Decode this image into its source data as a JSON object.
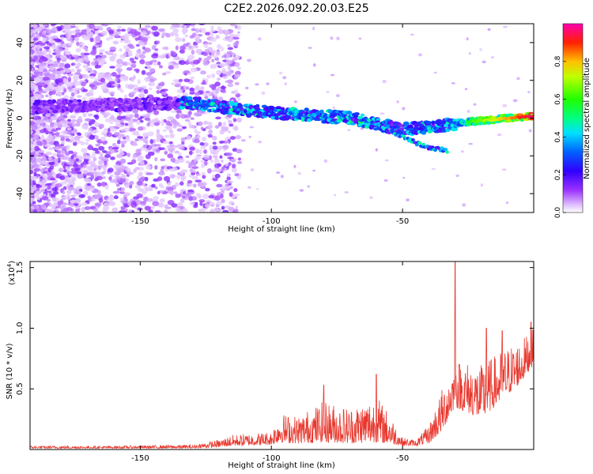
{
  "title": "C2E2.2026.092.20.03.E25",
  "chart_data": [
    {
      "type": "heatmap",
      "title": "C2E2.2026.092.20.03.E25",
      "xlabel": "Height of straight line (km)",
      "ylabel": "Frequency (Hz)",
      "xlim": [
        -192,
        0
      ],
      "ylim": [
        -50,
        50
      ],
      "xticks": [
        -150,
        -100,
        -50
      ],
      "yticks": [
        -40,
        -20,
        0,
        20,
        40
      ],
      "grid": false,
      "colorbar": {
        "label": "Normalized spectral amplitude",
        "range": [
          0,
          1
        ],
        "ticks": [
          "0.0",
          "0.2",
          "0.4",
          "0.6",
          "0.8"
        ],
        "colors": [
          "#ffffff",
          "#cc88ff",
          "#8000ff",
          "#0000ff",
          "#00ffff",
          "#00ff00",
          "#ffff00",
          "#ff8000",
          "#ff0000",
          "#ff00ff"
        ]
      },
      "ridge": {
        "description": "dominant spectral ridge",
        "points": [
          {
            "x": -188,
            "freq": 6
          },
          {
            "x": -130,
            "freq": 8
          },
          {
            "x": -110,
            "freq": 4
          },
          {
            "x": -90,
            "freq": 2
          },
          {
            "x": -70,
            "freq": 0
          },
          {
            "x": -50,
            "freq": -6
          },
          {
            "x": -35,
            "freq": -4
          },
          {
            "x": -25,
            "freq": -2
          },
          {
            "x": -10,
            "freq": 0
          },
          {
            "x": 0,
            "freq": 1
          }
        ],
        "branch": [
          {
            "x": -60,
            "freq": -4
          },
          {
            "x": -50,
            "freq": -10
          },
          {
            "x": -40,
            "freq": -16
          },
          {
            "x": -33,
            "freq": -17
          }
        ]
      }
    },
    {
      "type": "line",
      "xlabel": "Height of straight line (km)",
      "ylabel": "SNR (10 * v/v)",
      "yscale_label": "(x10",
      "yscale_exponent": "4",
      "xlim": [
        -192,
        0
      ],
      "ylim": [
        0,
        1.55
      ],
      "xticks": [
        -150,
        -100,
        -50
      ],
      "yticks": [
        0.5,
        1.0,
        1.5
      ],
      "ytick_labels": [
        "0.5",
        "1.0",
        "1.5"
      ],
      "color": "#e8392f",
      "grid": false,
      "envelope": [
        {
          "x": -192,
          "lo": 0.01,
          "hi": 0.03
        },
        {
          "x": -160,
          "lo": 0.01,
          "hi": 0.03
        },
        {
          "x": -130,
          "lo": 0.01,
          "hi": 0.04
        },
        {
          "x": -120,
          "lo": 0.02,
          "hi": 0.08
        },
        {
          "x": -115,
          "lo": 0.03,
          "hi": 0.12
        },
        {
          "x": -100,
          "lo": 0.04,
          "hi": 0.15
        },
        {
          "x": -97,
          "lo": 0.06,
          "hi": 0.3
        },
        {
          "x": -90,
          "lo": 0.05,
          "hi": 0.28
        },
        {
          "x": -80,
          "lo": 0.06,
          "hi": 0.4
        },
        {
          "x": -70,
          "lo": 0.05,
          "hi": 0.35
        },
        {
          "x": -60,
          "lo": 0.06,
          "hi": 0.45
        },
        {
          "x": -55,
          "lo": 0.05,
          "hi": 0.3
        },
        {
          "x": -50,
          "lo": 0.03,
          "hi": 0.1
        },
        {
          "x": -45,
          "lo": 0.03,
          "hi": 0.08
        },
        {
          "x": -40,
          "lo": 0.05,
          "hi": 0.2
        },
        {
          "x": -35,
          "lo": 0.15,
          "hi": 0.5
        },
        {
          "x": -30,
          "lo": 0.35,
          "hi": 0.75
        },
        {
          "x": -20,
          "lo": 0.25,
          "hi": 0.7
        },
        {
          "x": -10,
          "lo": 0.45,
          "hi": 0.85
        },
        {
          "x": -5,
          "lo": 0.55,
          "hi": 0.9
        },
        {
          "x": 0,
          "lo": 0.7,
          "hi": 1.0
        }
      ],
      "peaks": [
        {
          "x": -80,
          "y": 0.53
        },
        {
          "x": -60,
          "y": 0.62
        },
        {
          "x": -30,
          "y": 1.55
        },
        {
          "x": -18,
          "y": 1.0
        },
        {
          "x": -12,
          "y": 0.98
        },
        {
          "x": -1,
          "y": 1.05
        }
      ]
    }
  ]
}
